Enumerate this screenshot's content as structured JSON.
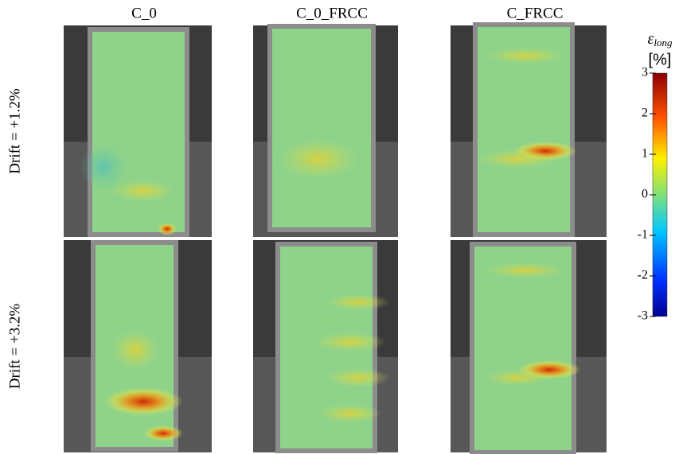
{
  "columns": [
    "C_0",
    "C_0_FRCC",
    "C_FRCC"
  ],
  "rows": [
    "Drift = +1.2%",
    "Drift = +3.2%"
  ],
  "colorbar": {
    "symbol": "ε",
    "subscript": "long",
    "unit": "[%]",
    "lim": [
      -3,
      3
    ],
    "ticks": [
      3,
      2,
      1,
      0,
      -1,
      -2,
      -3
    ]
  }
}
